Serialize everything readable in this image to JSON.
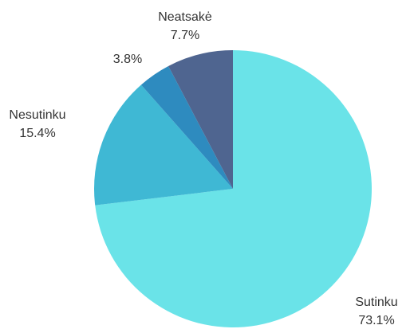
{
  "chart_data": {
    "type": "pie",
    "categories": [
      "Sutinku",
      "Nesutinku",
      null,
      "Neatsakė"
    ],
    "values": [
      73.1,
      15.4,
      3.8,
      7.7
    ],
    "value_labels": [
      "73.1%",
      "15.4%",
      "3.8%",
      "7.7%"
    ],
    "colors": [
      "#6ae3e8",
      "#3fb8d4",
      "#2e8bbf",
      "#4f6590"
    ]
  }
}
